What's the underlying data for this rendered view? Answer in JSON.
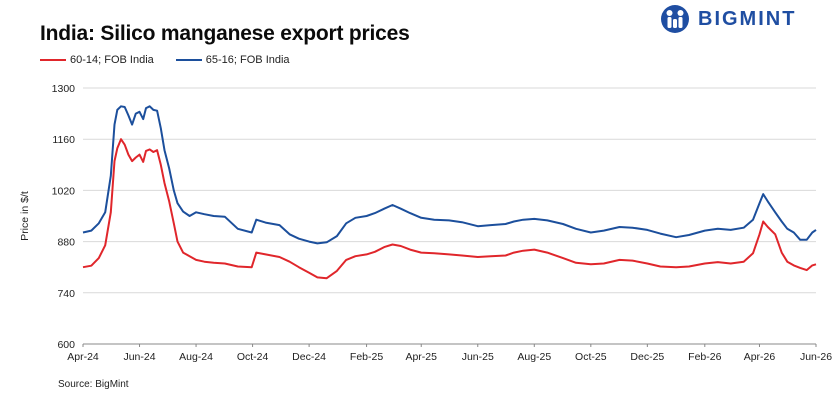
{
  "title": "India: Silico manganese export prices",
  "brand": {
    "name": "BIGMINT",
    "logo_icon": "bigmint-logo-icon",
    "color": "#1f4ea2"
  },
  "source": "Source: BigMint",
  "chart_data": {
    "type": "line",
    "title": "India: Silico manganese export prices",
    "ylabel": "Price in $/t",
    "xlabel": "",
    "ylim": [
      600,
      1300
    ],
    "yticks": [
      600,
      740,
      880,
      1020,
      1160,
      1300
    ],
    "xlim": [
      "2024-04-01",
      "2026-06-01"
    ],
    "xticks": [
      "Apr-24",
      "Jun-24",
      "Aug-24",
      "Oct-24",
      "Dec-24",
      "Feb-25",
      "Apr-25",
      "Jun-25",
      "Aug-25",
      "Oct-25",
      "Dec-25",
      "Feb-26",
      "Apr-26",
      "Jun-26"
    ],
    "xtick_dates": [
      "2024-04-01",
      "2024-06-01",
      "2024-08-01",
      "2024-10-01",
      "2024-12-01",
      "2025-02-01",
      "2025-04-01",
      "2025-06-01",
      "2025-08-01",
      "2025-10-01",
      "2025-12-01",
      "2026-02-01",
      "2026-04-01",
      "2026-06-01"
    ],
    "grid": "horizontal",
    "legend_position": "top-left",
    "series": [
      {
        "name": "60-14; FOB India",
        "color": "#e0262b",
        "points": [
          [
            "2024-04-01",
            810
          ],
          [
            "2024-04-10",
            814
          ],
          [
            "2024-04-18",
            835
          ],
          [
            "2024-04-25",
            870
          ],
          [
            "2024-05-01",
            960
          ],
          [
            "2024-05-05",
            1100
          ],
          [
            "2024-05-08",
            1135
          ],
          [
            "2024-05-12",
            1160
          ],
          [
            "2024-05-16",
            1145
          ],
          [
            "2024-05-20",
            1118
          ],
          [
            "2024-05-24",
            1100
          ],
          [
            "2024-05-28",
            1110
          ],
          [
            "2024-06-01",
            1118
          ],
          [
            "2024-06-05",
            1098
          ],
          [
            "2024-06-08",
            1128
          ],
          [
            "2024-06-12",
            1132
          ],
          [
            "2024-06-16",
            1125
          ],
          [
            "2024-06-20",
            1130
          ],
          [
            "2024-06-24",
            1090
          ],
          [
            "2024-06-28",
            1040
          ],
          [
            "2024-07-03",
            990
          ],
          [
            "2024-07-08",
            930
          ],
          [
            "2024-07-12",
            880
          ],
          [
            "2024-07-18",
            850
          ],
          [
            "2024-07-25",
            840
          ],
          [
            "2024-08-01",
            830
          ],
          [
            "2024-08-10",
            825
          ],
          [
            "2024-08-20",
            822
          ],
          [
            "2024-09-01",
            820
          ],
          [
            "2024-09-15",
            812
          ],
          [
            "2024-09-30",
            810
          ],
          [
            "2024-10-05",
            850
          ],
          [
            "2024-10-15",
            845
          ],
          [
            "2024-10-30",
            838
          ],
          [
            "2024-11-10",
            825
          ],
          [
            "2024-11-20",
            810
          ],
          [
            "2024-12-01",
            795
          ],
          [
            "2024-12-10",
            782
          ],
          [
            "2024-12-20",
            780
          ],
          [
            "2024-12-31",
            800
          ],
          [
            "2025-01-10",
            830
          ],
          [
            "2025-01-20",
            840
          ],
          [
            "2025-02-01",
            845
          ],
          [
            "2025-02-10",
            852
          ],
          [
            "2025-02-20",
            865
          ],
          [
            "2025-03-01",
            872
          ],
          [
            "2025-03-10",
            868
          ],
          [
            "2025-03-20",
            858
          ],
          [
            "2025-04-01",
            850
          ],
          [
            "2025-04-15",
            848
          ],
          [
            "2025-05-01",
            845
          ],
          [
            "2025-05-15",
            842
          ],
          [
            "2025-06-01",
            838
          ],
          [
            "2025-06-15",
            840
          ],
          [
            "2025-07-01",
            842
          ],
          [
            "2025-07-10",
            850
          ],
          [
            "2025-07-20",
            855
          ],
          [
            "2025-08-01",
            858
          ],
          [
            "2025-08-15",
            850
          ],
          [
            "2025-09-01",
            835
          ],
          [
            "2025-09-15",
            822
          ],
          [
            "2025-10-01",
            818
          ],
          [
            "2025-10-15",
            820
          ],
          [
            "2025-11-01",
            830
          ],
          [
            "2025-11-15",
            828
          ],
          [
            "2025-12-01",
            820
          ],
          [
            "2025-12-15",
            812
          ],
          [
            "2026-01-01",
            810
          ],
          [
            "2026-01-15",
            812
          ],
          [
            "2026-02-01",
            820
          ],
          [
            "2026-02-15",
            824
          ],
          [
            "2026-03-01",
            820
          ],
          [
            "2026-03-15",
            825
          ],
          [
            "2026-03-25",
            848
          ],
          [
            "2026-04-01",
            900
          ],
          [
            "2026-04-05",
            935
          ],
          [
            "2026-04-10",
            920
          ],
          [
            "2026-04-18",
            900
          ],
          [
            "2026-04-25",
            850
          ],
          [
            "2026-05-01",
            825
          ],
          [
            "2026-05-08",
            815
          ],
          [
            "2026-05-15",
            808
          ],
          [
            "2026-05-22",
            802
          ],
          [
            "2026-05-28",
            815
          ],
          [
            "2026-06-01",
            818
          ]
        ]
      },
      {
        "name": "65-16; FOB India",
        "color": "#1c4f9c",
        "points": [
          [
            "2024-04-01",
            905
          ],
          [
            "2024-04-10",
            910
          ],
          [
            "2024-04-18",
            930
          ],
          [
            "2024-04-25",
            960
          ],
          [
            "2024-05-01",
            1060
          ],
          [
            "2024-05-05",
            1200
          ],
          [
            "2024-05-08",
            1240
          ],
          [
            "2024-05-12",
            1250
          ],
          [
            "2024-05-16",
            1248
          ],
          [
            "2024-05-20",
            1225
          ],
          [
            "2024-05-24",
            1200
          ],
          [
            "2024-05-28",
            1230
          ],
          [
            "2024-06-01",
            1235
          ],
          [
            "2024-06-05",
            1215
          ],
          [
            "2024-06-08",
            1245
          ],
          [
            "2024-06-12",
            1250
          ],
          [
            "2024-06-16",
            1240
          ],
          [
            "2024-06-20",
            1238
          ],
          [
            "2024-06-24",
            1190
          ],
          [
            "2024-06-28",
            1130
          ],
          [
            "2024-07-03",
            1080
          ],
          [
            "2024-07-08",
            1020
          ],
          [
            "2024-07-12",
            985
          ],
          [
            "2024-07-18",
            962
          ],
          [
            "2024-07-25",
            950
          ],
          [
            "2024-08-01",
            960
          ],
          [
            "2024-08-10",
            955
          ],
          [
            "2024-08-20",
            950
          ],
          [
            "2024-09-01",
            948
          ],
          [
            "2024-09-15",
            915
          ],
          [
            "2024-09-30",
            905
          ],
          [
            "2024-10-05",
            940
          ],
          [
            "2024-10-15",
            932
          ],
          [
            "2024-10-30",
            925
          ],
          [
            "2024-11-10",
            900
          ],
          [
            "2024-11-20",
            888
          ],
          [
            "2024-12-01",
            880
          ],
          [
            "2024-12-10",
            875
          ],
          [
            "2024-12-20",
            878
          ],
          [
            "2024-12-31",
            895
          ],
          [
            "2025-01-10",
            930
          ],
          [
            "2025-01-20",
            945
          ],
          [
            "2025-02-01",
            950
          ],
          [
            "2025-02-10",
            958
          ],
          [
            "2025-02-20",
            970
          ],
          [
            "2025-03-01",
            980
          ],
          [
            "2025-03-10",
            970
          ],
          [
            "2025-03-20",
            958
          ],
          [
            "2025-04-01",
            945
          ],
          [
            "2025-04-15",
            940
          ],
          [
            "2025-05-01",
            938
          ],
          [
            "2025-05-15",
            933
          ],
          [
            "2025-06-01",
            922
          ],
          [
            "2025-06-15",
            925
          ],
          [
            "2025-07-01",
            928
          ],
          [
            "2025-07-10",
            935
          ],
          [
            "2025-07-20",
            940
          ],
          [
            "2025-08-01",
            942
          ],
          [
            "2025-08-15",
            938
          ],
          [
            "2025-09-01",
            928
          ],
          [
            "2025-09-15",
            915
          ],
          [
            "2025-10-01",
            905
          ],
          [
            "2025-10-15",
            910
          ],
          [
            "2025-11-01",
            920
          ],
          [
            "2025-11-15",
            918
          ],
          [
            "2025-12-01",
            912
          ],
          [
            "2025-12-15",
            902
          ],
          [
            "2026-01-01",
            892
          ],
          [
            "2026-01-15",
            898
          ],
          [
            "2026-02-01",
            910
          ],
          [
            "2026-02-15",
            915
          ],
          [
            "2026-03-01",
            912
          ],
          [
            "2026-03-15",
            918
          ],
          [
            "2026-03-25",
            940
          ],
          [
            "2026-04-01",
            985
          ],
          [
            "2026-04-05",
            1010
          ],
          [
            "2026-04-10",
            990
          ],
          [
            "2026-04-18",
            960
          ],
          [
            "2026-04-25",
            935
          ],
          [
            "2026-05-01",
            915
          ],
          [
            "2026-05-08",
            905
          ],
          [
            "2026-05-15",
            885
          ],
          [
            "2026-05-22",
            885
          ],
          [
            "2026-05-28",
            905
          ],
          [
            "2026-06-01",
            912
          ]
        ]
      }
    ]
  }
}
